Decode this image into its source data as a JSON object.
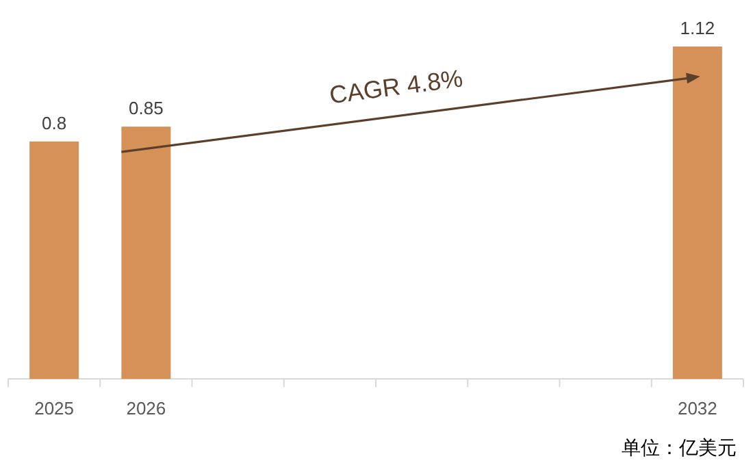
{
  "chart_data": {
    "type": "bar",
    "categories": [
      "2025",
      "2026",
      null,
      null,
      null,
      null,
      null,
      "2032"
    ],
    "values": [
      0.8,
      0.85,
      null,
      null,
      null,
      null,
      null,
      1.12
    ],
    "color": "#d69159",
    "data_labels": true,
    "annotations": [
      "CAGR 4.8%",
      "单位：亿美元"
    ]
  }
}
